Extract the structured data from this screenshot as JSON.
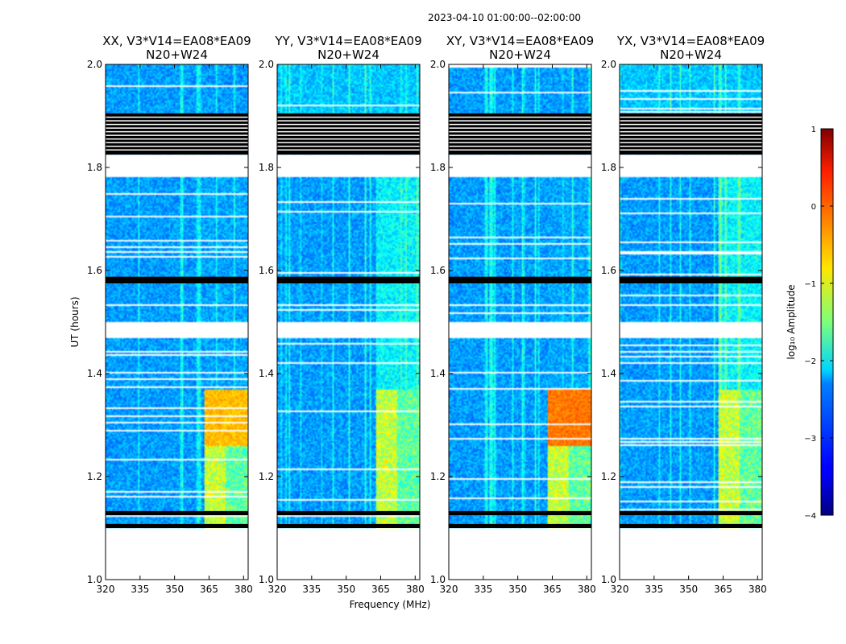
{
  "chart_data": {
    "type": "heatmap",
    "suptitle": "2023-04-10  01:00:00--02:00:00",
    "xlabel": "Frequency (MHz)",
    "ylabel": "UT (hours)",
    "xlim": [
      320,
      382
    ],
    "ylim": [
      1.0,
      2.0
    ],
    "xticks": [
      320,
      335,
      350,
      365,
      380
    ],
    "xtick_labels": [
      "320",
      "335",
      "350",
      "365",
      "380"
    ],
    "yticks": [
      1.0,
      1.2,
      1.4,
      1.6,
      1.8,
      2.0
    ],
    "ytick_labels": [
      "1.0",
      "1.2",
      "1.4",
      "1.6",
      "1.8",
      "2.0"
    ],
    "panels": [
      {
        "title_line1": "XX, V3*V14=EA08*EA09",
        "title_line2": "N20+W24",
        "hot_level": 0.65,
        "mode": "xx"
      },
      {
        "title_line1": "YY, V3*V14=EA08*EA09",
        "title_line2": "N20+W24",
        "hot_level": 0.52,
        "mode": "yy"
      },
      {
        "title_line1": "XY, V3*V14=EA08*EA09",
        "title_line2": "N20+W24",
        "hot_level": 0.72,
        "mode": "xx"
      },
      {
        "title_line1": "YX, V3*V14=EA08*EA09",
        "title_line2": "N20+W24",
        "hot_level": 0.45,
        "mode": "yy"
      }
    ],
    "rfi_band_mhz": [
      363,
      382
    ],
    "gaps_hours": [
      [
        1.0,
        1.1
      ],
      [
        1.47,
        1.5
      ],
      [
        1.53,
        1.535
      ],
      [
        1.78,
        1.825
      ]
    ],
    "flagged_black_hours": [
      [
        1.1,
        1.108
      ],
      [
        1.125,
        1.133
      ],
      [
        1.575,
        1.588
      ],
      [
        1.825,
        1.905
      ]
    ],
    "colorbar": {
      "label": "log₁₀ Amplitude",
      "range": [
        -4,
        1
      ],
      "ticks": [
        1,
        0,
        -1,
        -2,
        -3,
        -4
      ],
      "tick_labels": [
        "1",
        "0",
        "−1",
        "−2",
        "−3",
        "−4"
      ]
    }
  }
}
